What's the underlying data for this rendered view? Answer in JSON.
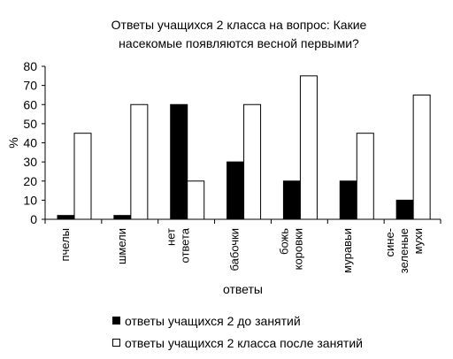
{
  "chart_data": {
    "type": "bar",
    "title_lines": [
      "Ответы учащихся 2 класса на вопрос: Какие",
      "насекомые появляются весной первыми?"
    ],
    "xlabel": "ответы",
    "ylabel": "%",
    "ylim": [
      0,
      80
    ],
    "yticks": [
      0,
      10,
      20,
      30,
      40,
      50,
      60,
      70,
      80
    ],
    "grid": false,
    "legend_position": "bottom",
    "categories": [
      [
        "пчелы"
      ],
      [
        "шмели"
      ],
      [
        "нет",
        "ответа"
      ],
      [
        "бабочки"
      ],
      [
        "божь",
        "коровки"
      ],
      [
        "муравьи"
      ],
      [
        "сине-",
        "зеленые",
        "мухи"
      ]
    ],
    "series": [
      {
        "name": "ответы учащихся 2 до занятий",
        "color": "#000000",
        "values": [
          2,
          2,
          60,
          30,
          20,
          20,
          10
        ]
      },
      {
        "name": "ответы учащихся 2 класса после занятий",
        "color": "#ffffff",
        "values": [
          45,
          60,
          20,
          60,
          75,
          45,
          65
        ]
      }
    ]
  }
}
